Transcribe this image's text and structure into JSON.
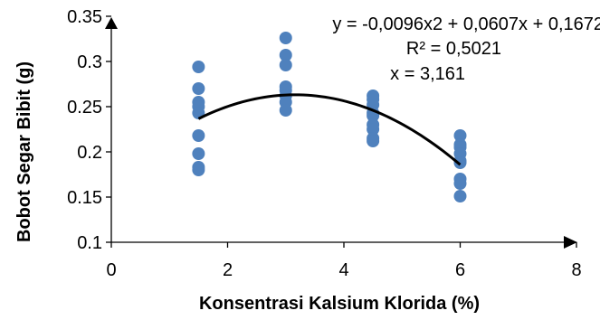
{
  "chart_data": {
    "type": "scatter",
    "title": "",
    "xlabel": "Konsentrasi Kalsium Klorida (%)",
    "ylabel": "Bobot Segar Bibit (g)",
    "xlim": [
      0,
      8
    ],
    "ylim": [
      0.1,
      0.35
    ],
    "x_ticks": [
      0,
      2,
      4,
      6,
      8
    ],
    "y_ticks": [
      0.1,
      0.15,
      0.2,
      0.25,
      0.3,
      0.35
    ],
    "x_tick_labels": [
      "0",
      "2",
      "4",
      "6",
      "8"
    ],
    "y_tick_labels": [
      "0.1",
      "0.15",
      "0.2",
      "0.25",
      "0.3",
      "0.35"
    ],
    "grid": false,
    "legend": "none",
    "series": [
      {
        "marker_color": "#4f81bd",
        "points": [
          [
            1.5,
            0.294
          ],
          [
            1.5,
            0.27
          ],
          [
            1.5,
            0.255
          ],
          [
            1.5,
            0.25
          ],
          [
            1.5,
            0.243
          ],
          [
            1.5,
            0.218
          ],
          [
            1.5,
            0.198
          ],
          [
            1.5,
            0.183
          ],
          [
            1.5,
            0.18
          ],
          [
            3.0,
            0.326
          ],
          [
            3.0,
            0.307
          ],
          [
            3.0,
            0.296
          ],
          [
            3.0,
            0.272
          ],
          [
            3.0,
            0.268
          ],
          [
            3.0,
            0.262
          ],
          [
            3.0,
            0.255
          ],
          [
            3.0,
            0.246
          ],
          [
            4.5,
            0.262
          ],
          [
            4.5,
            0.258
          ],
          [
            4.5,
            0.252
          ],
          [
            4.5,
            0.243
          ],
          [
            4.5,
            0.24
          ],
          [
            4.5,
            0.23
          ],
          [
            4.5,
            0.225
          ],
          [
            4.5,
            0.215
          ],
          [
            4.5,
            0.212
          ],
          [
            6.0,
            0.218
          ],
          [
            6.0,
            0.208
          ],
          [
            6.0,
            0.205
          ],
          [
            6.0,
            0.198
          ],
          [
            6.0,
            0.19
          ],
          [
            6.0,
            0.188
          ],
          [
            6.0,
            0.17
          ],
          [
            6.0,
            0.165
          ],
          [
            6.0,
            0.151
          ]
        ]
      }
    ],
    "trendline": {
      "type": "polynomial",
      "coefficients": [
        -0.0096,
        0.0607,
        0.1672
      ],
      "x_range": [
        1.5,
        6.0
      ],
      "color": "#000000",
      "equation": "y = -0,0096x2 + 0,0607x + 0,1672",
      "r_squared": "R² = 0,5021",
      "vertex": "x = 3,161"
    }
  }
}
